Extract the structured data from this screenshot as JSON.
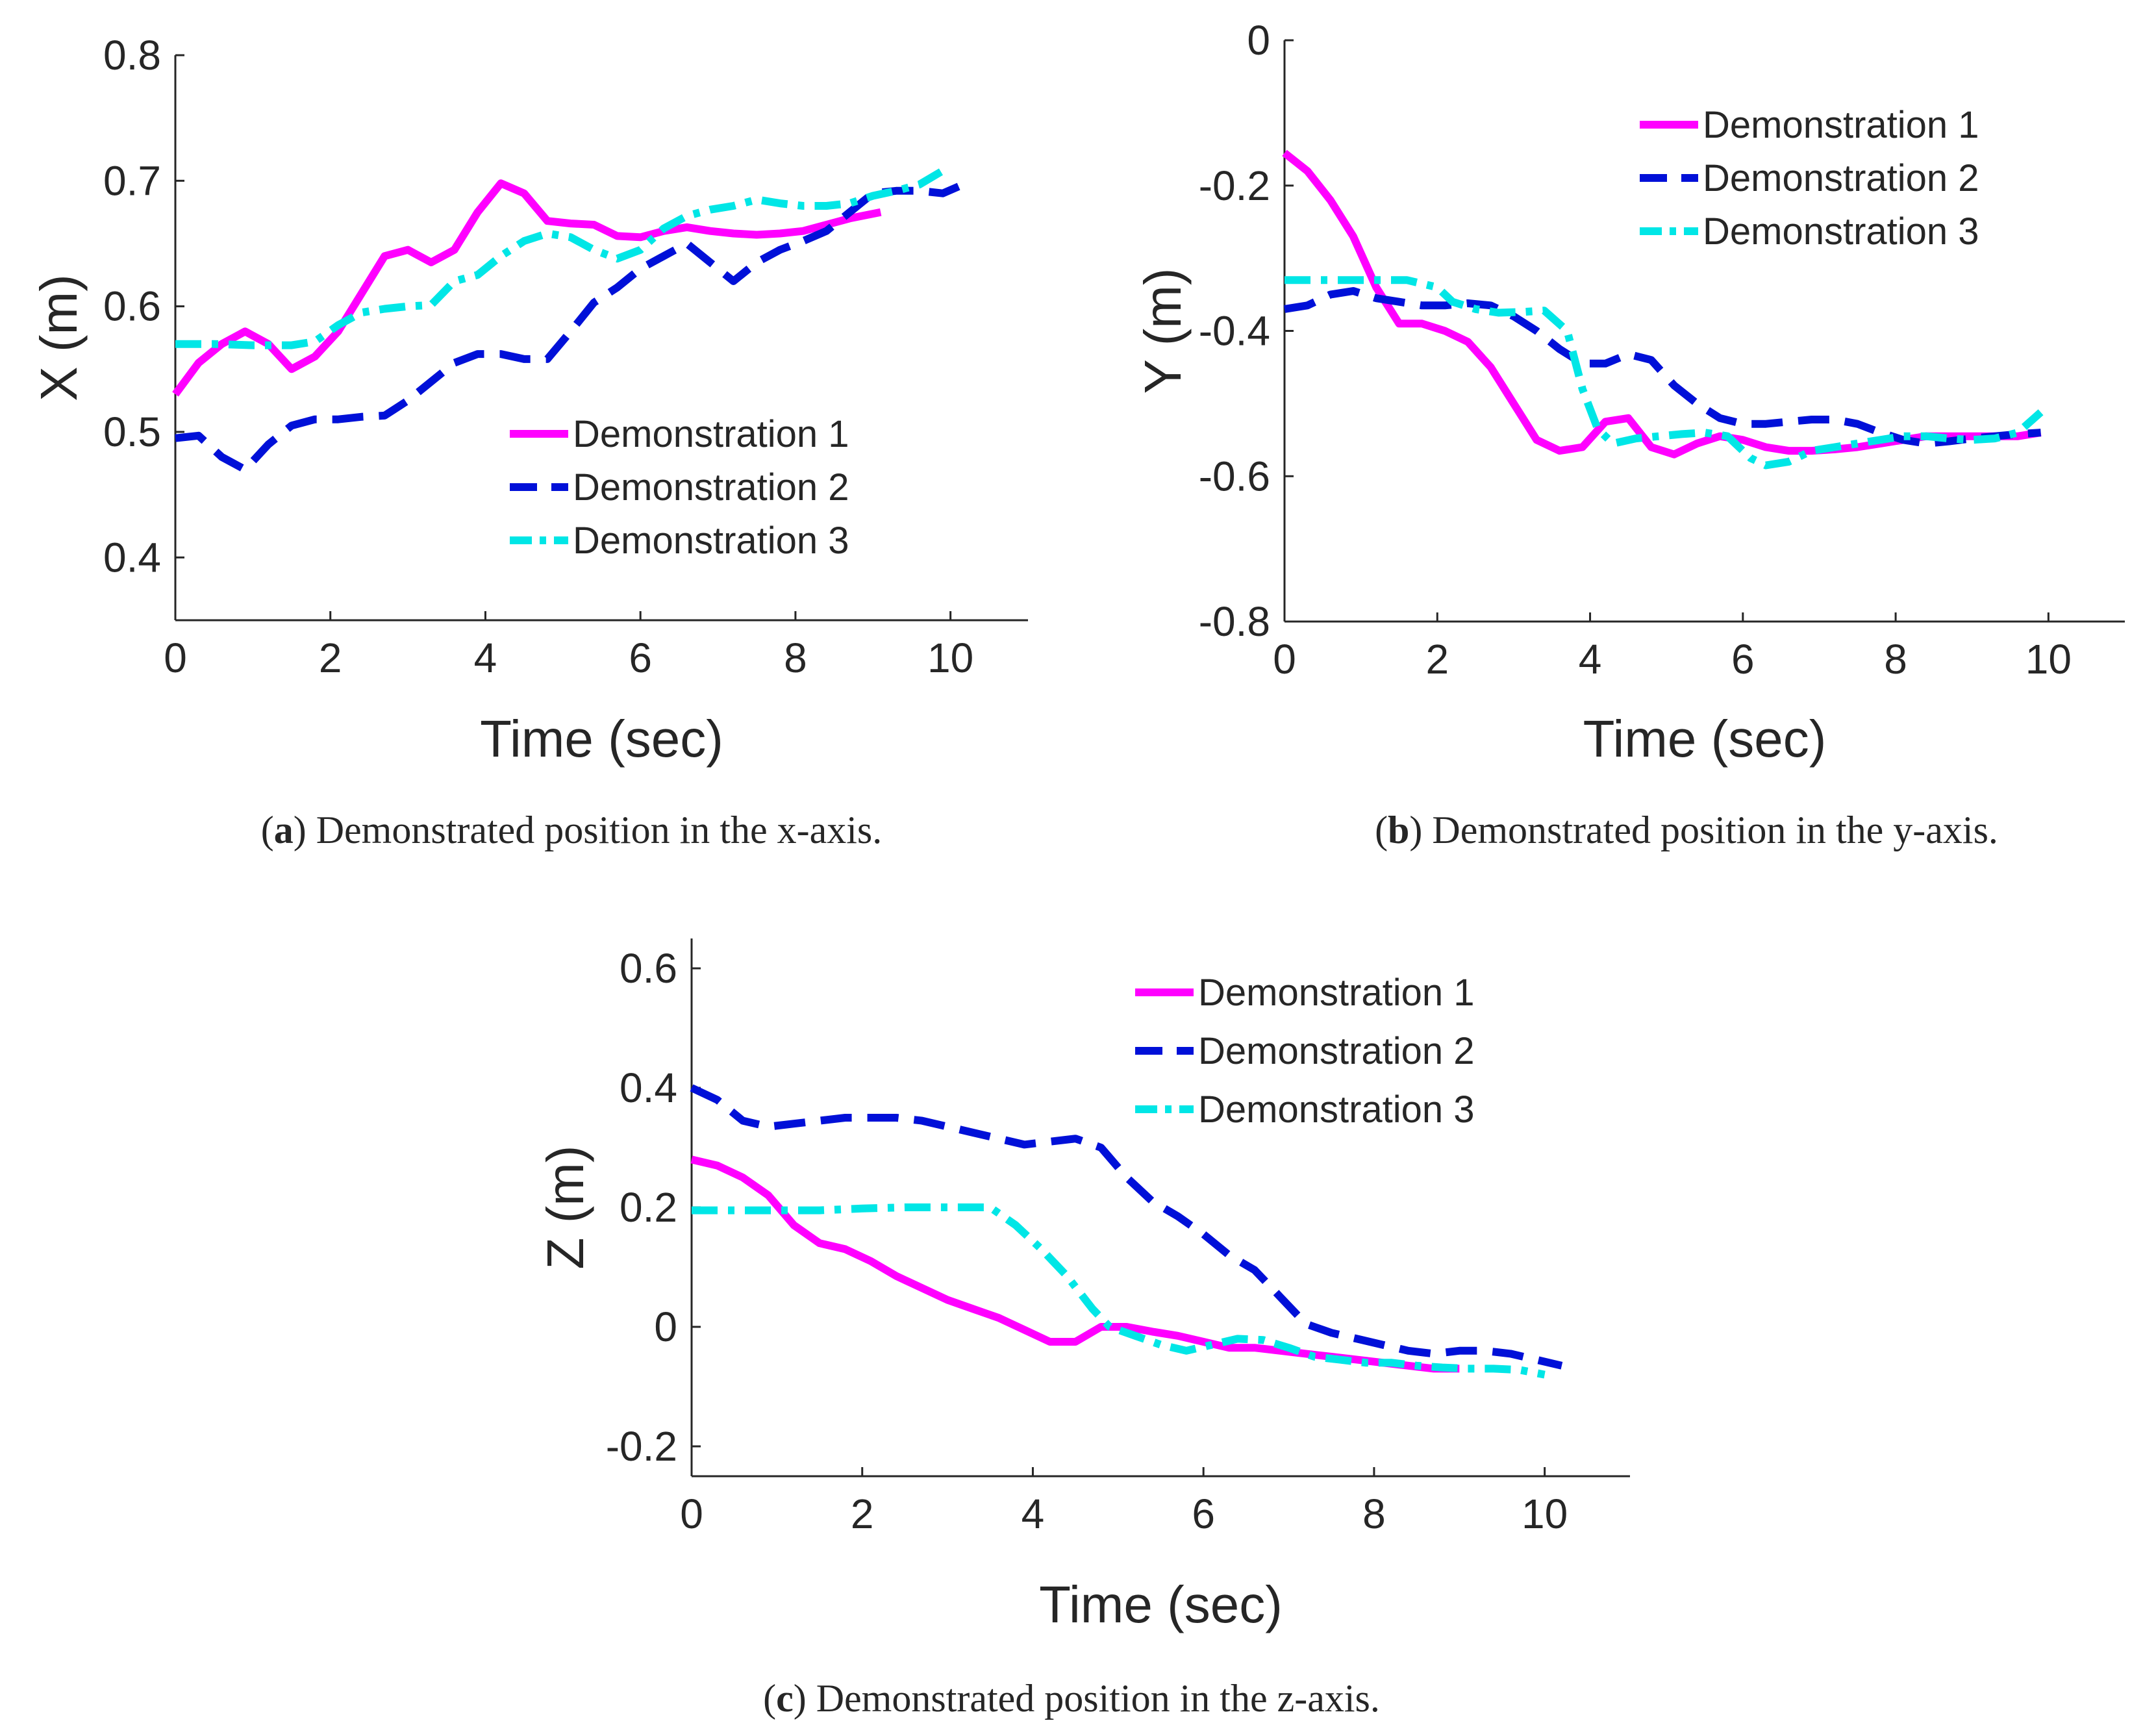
{
  "chart_data": [
    {
      "type": "line",
      "panel": "a",
      "caption_letter": "a",
      "caption_text": "Demonstrated position in the x-axis.",
      "xlabel": "Time (sec)",
      "ylabel": "X (m)",
      "xlim": [
        0,
        11
      ],
      "ylim": [
        0.35,
        0.8
      ],
      "xticks": [
        0,
        2,
        4,
        6,
        8,
        10
      ],
      "yticks": [
        0.4,
        0.5,
        0.6,
        0.7,
        0.8
      ],
      "xtick_labels": [
        "0",
        "2",
        "4",
        "6",
        "8",
        "10"
      ],
      "ytick_labels": [
        "0.4",
        "0.5",
        "0.6",
        "0.7",
        "0.8"
      ],
      "legend_position": "lower-right",
      "series": [
        {
          "name": "Demonstration 1",
          "color": "#ff00ff",
          "style": "solid",
          "x": [
            0,
            0.3,
            0.6,
            0.9,
            1.2,
            1.5,
            1.8,
            2.1,
            2.4,
            2.7,
            3.0,
            3.3,
            3.6,
            3.9,
            4.2,
            4.5,
            4.8,
            5.1,
            5.4,
            5.7,
            6.0,
            6.3,
            6.6,
            6.9,
            7.2,
            7.5,
            7.8,
            8.1,
            8.4,
            8.7,
            9.1
          ],
          "y": [
            0.53,
            0.555,
            0.57,
            0.58,
            0.57,
            0.55,
            0.56,
            0.58,
            0.61,
            0.64,
            0.645,
            0.635,
            0.645,
            0.675,
            0.698,
            0.69,
            0.668,
            0.666,
            0.665,
            0.656,
            0.655,
            0.66,
            0.663,
            0.66,
            0.658,
            0.657,
            0.658,
            0.66,
            0.665,
            0.67,
            0.675
          ]
        },
        {
          "name": "Demonstration 2",
          "color": "#0010d8",
          "style": "dashed",
          "x": [
            0,
            0.3,
            0.6,
            0.9,
            1.2,
            1.5,
            1.8,
            2.1,
            2.4,
            2.7,
            3.0,
            3.3,
            3.6,
            3.9,
            4.2,
            4.5,
            4.8,
            5.1,
            5.4,
            5.7,
            6.0,
            6.3,
            6.6,
            6.9,
            7.2,
            7.5,
            7.8,
            8.1,
            8.4,
            8.7,
            9.0,
            9.3,
            9.6,
            9.9,
            10.2
          ],
          "y": [
            0.495,
            0.497,
            0.48,
            0.47,
            0.49,
            0.505,
            0.51,
            0.51,
            0.512,
            0.513,
            0.525,
            0.54,
            0.555,
            0.562,
            0.562,
            0.558,
            0.558,
            0.58,
            0.603,
            0.615,
            0.63,
            0.64,
            0.65,
            0.635,
            0.62,
            0.635,
            0.645,
            0.652,
            0.66,
            0.675,
            0.69,
            0.692,
            0.692,
            0.69,
            0.698
          ]
        },
        {
          "name": "Demonstration 3",
          "color": "#00e6e6",
          "style": "dashdot",
          "x": [
            0,
            0.5,
            1.0,
            1.5,
            1.8,
            2.1,
            2.4,
            2.7,
            3.0,
            3.3,
            3.6,
            3.9,
            4.2,
            4.5,
            4.8,
            5.1,
            5.4,
            5.7,
            6.0,
            6.3,
            6.6,
            6.9,
            7.2,
            7.5,
            7.8,
            8.1,
            8.4,
            8.7,
            9.0,
            9.3,
            9.6,
            9.9
          ],
          "y": [
            0.57,
            0.57,
            0.569,
            0.569,
            0.572,
            0.585,
            0.595,
            0.598,
            0.6,
            0.601,
            0.62,
            0.625,
            0.64,
            0.652,
            0.658,
            0.655,
            0.645,
            0.638,
            0.645,
            0.662,
            0.672,
            0.677,
            0.68,
            0.685,
            0.682,
            0.68,
            0.68,
            0.682,
            0.688,
            0.692,
            0.697,
            0.708
          ]
        }
      ]
    },
    {
      "type": "line",
      "panel": "b",
      "caption_letter": "b",
      "caption_text": "Demonstrated position in the y-axis.",
      "xlabel": "Time (sec)",
      "ylabel": "Y (m)",
      "xlim": [
        0,
        11
      ],
      "ylim": [
        -0.8,
        0
      ],
      "xticks": [
        0,
        2,
        4,
        6,
        8,
        10
      ],
      "yticks": [
        0,
        -0.2,
        -0.4,
        -0.6,
        -0.8
      ],
      "xtick_labels": [
        "0",
        "2",
        "4",
        "6",
        "8",
        "10"
      ],
      "ytick_labels": [
        "0",
        "-0.2",
        "-0.4",
        "-0.6",
        "-0.8"
      ],
      "legend_position": "top-right",
      "series": [
        {
          "name": "Demonstration 1",
          "color": "#ff00ff",
          "style": "solid",
          "x": [
            0,
            0.3,
            0.6,
            0.9,
            1.2,
            1.5,
            1.8,
            2.1,
            2.4,
            2.7,
            3.0,
            3.3,
            3.6,
            3.9,
            4.2,
            4.5,
            4.8,
            5.1,
            5.4,
            5.7,
            6.0,
            6.3,
            6.6,
            6.9,
            7.2,
            7.5,
            7.8,
            8.1,
            8.4,
            8.7,
            9.0,
            9.3,
            9.6,
            9.9
          ],
          "y": [
            -0.155,
            -0.18,
            -0.22,
            -0.27,
            -0.34,
            -0.39,
            -0.39,
            -0.4,
            -0.415,
            -0.45,
            -0.5,
            -0.55,
            -0.565,
            -0.56,
            -0.525,
            -0.52,
            -0.56,
            -0.57,
            -0.555,
            -0.545,
            -0.55,
            -0.56,
            -0.565,
            -0.565,
            -0.563,
            -0.56,
            -0.555,
            -0.55,
            -0.545,
            -0.545,
            -0.545,
            -0.545,
            -0.545,
            -0.54
          ]
        },
        {
          "name": "Demonstration 2",
          "color": "#0010d8",
          "style": "dashed",
          "x": [
            0,
            0.3,
            0.6,
            0.9,
            1.2,
            1.5,
            1.8,
            2.1,
            2.4,
            2.7,
            3.0,
            3.3,
            3.6,
            3.9,
            4.2,
            4.5,
            4.8,
            5.1,
            5.4,
            5.7,
            6.0,
            6.3,
            6.6,
            6.9,
            7.2,
            7.5,
            7.8,
            8.1,
            8.4,
            8.7,
            9.0,
            9.3,
            9.6,
            9.9
          ],
          "y": [
            -0.37,
            -0.365,
            -0.35,
            -0.345,
            -0.355,
            -0.36,
            -0.365,
            -0.365,
            -0.362,
            -0.365,
            -0.38,
            -0.4,
            -0.425,
            -0.445,
            -0.445,
            -0.432,
            -0.44,
            -0.475,
            -0.5,
            -0.52,
            -0.528,
            -0.528,
            -0.525,
            -0.522,
            -0.522,
            -0.528,
            -0.54,
            -0.55,
            -0.555,
            -0.552,
            -0.548,
            -0.545,
            -0.542,
            -0.54
          ]
        },
        {
          "name": "Demonstration 3",
          "color": "#00e6e6",
          "style": "dashdot",
          "x": [
            0,
            0.4,
            0.8,
            1.2,
            1.6,
            2.0,
            2.2,
            2.5,
            2.8,
            3.1,
            3.4,
            3.7,
            3.9,
            4.1,
            4.3,
            4.6,
            4.9,
            5.2,
            5.5,
            5.8,
            6.1,
            6.3,
            6.6,
            6.9,
            7.2,
            7.5,
            7.8,
            8.1,
            8.4,
            8.7,
            9.0,
            9.3,
            9.6,
            9.9
          ],
          "y": [
            -0.33,
            -0.33,
            -0.33,
            -0.33,
            -0.33,
            -0.34,
            -0.36,
            -0.37,
            -0.375,
            -0.374,
            -0.372,
            -0.4,
            -0.48,
            -0.535,
            -0.555,
            -0.548,
            -0.545,
            -0.542,
            -0.54,
            -0.545,
            -0.575,
            -0.585,
            -0.58,
            -0.565,
            -0.56,
            -0.555,
            -0.55,
            -0.545,
            -0.545,
            -0.548,
            -0.55,
            -0.548,
            -0.54,
            -0.512
          ]
        }
      ]
    },
    {
      "type": "line",
      "panel": "c",
      "caption_letter": "c",
      "caption_text": "Demonstrated position in the z-axis.",
      "xlabel": "Time (sec)",
      "ylabel": "Z (m)",
      "xlim": [
        0,
        11
      ],
      "ylim": [
        -0.25,
        0.65
      ],
      "xticks": [
        0,
        2,
        4,
        6,
        8,
        10
      ],
      "yticks": [
        0.6,
        0.4,
        0.2,
        0,
        -0.2
      ],
      "xtick_labels": [
        "0",
        "2",
        "4",
        "6",
        "8",
        "10"
      ],
      "ytick_labels": [
        "0.6",
        "0.4",
        "0.2",
        "0",
        "-0.2"
      ],
      "legend_position": "top-right",
      "series": [
        {
          "name": "Demonstration 1",
          "color": "#ff00ff",
          "style": "solid",
          "x": [
            0,
            0.3,
            0.6,
            0.9,
            1.2,
            1.5,
            1.8,
            2.1,
            2.4,
            2.7,
            3.0,
            3.3,
            3.6,
            3.9,
            4.2,
            4.5,
            4.8,
            5.1,
            5.4,
            5.7,
            6.0,
            6.3,
            6.6,
            6.9,
            7.2,
            7.5,
            7.8,
            8.1,
            8.4,
            8.7,
            9.0
          ],
          "y": [
            0.28,
            0.27,
            0.25,
            0.22,
            0.17,
            0.14,
            0.13,
            0.11,
            0.085,
            0.065,
            0.045,
            0.03,
            0.015,
            -0.005,
            -0.025,
            -0.025,
            0.0,
            0.0,
            -0.008,
            -0.015,
            -0.025,
            -0.035,
            -0.035,
            -0.04,
            -0.045,
            -0.05,
            -0.055,
            -0.06,
            -0.065,
            -0.07,
            -0.07
          ]
        },
        {
          "name": "Demonstration 2",
          "color": "#0010d8",
          "style": "dashed",
          "x": [
            0,
            0.3,
            0.6,
            0.9,
            1.2,
            1.5,
            1.8,
            2.1,
            2.4,
            2.7,
            3.0,
            3.3,
            3.6,
            3.9,
            4.2,
            4.5,
            4.8,
            5.1,
            5.4,
            5.7,
            6.0,
            6.3,
            6.6,
            6.9,
            7.2,
            7.5,
            7.8,
            8.1,
            8.4,
            8.7,
            9.0,
            9.3,
            9.6,
            9.9,
            10.2
          ],
          "y": [
            0.4,
            0.38,
            0.345,
            0.335,
            0.34,
            0.345,
            0.35,
            0.35,
            0.35,
            0.345,
            0.335,
            0.325,
            0.315,
            0.305,
            0.31,
            0.315,
            0.3,
            0.25,
            0.21,
            0.185,
            0.155,
            0.12,
            0.095,
            0.05,
            0.005,
            -0.01,
            -0.02,
            -0.03,
            -0.04,
            -0.045,
            -0.04,
            -0.04,
            -0.045,
            -0.055,
            -0.065
          ]
        },
        {
          "name": "Demonstration 3",
          "color": "#00e6e6",
          "style": "dashdot",
          "x": [
            0,
            0.5,
            1.0,
            1.5,
            2.0,
            2.5,
            3.0,
            3.5,
            3.8,
            4.1,
            4.4,
            4.7,
            4.9,
            5.2,
            5.5,
            5.8,
            6.1,
            6.4,
            6.7,
            7.0,
            7.3,
            7.6,
            7.9,
            8.2,
            8.5,
            8.8,
            9.1,
            9.4,
            9.7,
            10.0
          ],
          "y": [
            0.195,
            0.195,
            0.195,
            0.195,
            0.198,
            0.2,
            0.2,
            0.2,
            0.17,
            0.13,
            0.085,
            0.03,
            0.0,
            -0.015,
            -0.03,
            -0.04,
            -0.03,
            -0.02,
            -0.022,
            -0.035,
            -0.05,
            -0.055,
            -0.06,
            -0.06,
            -0.065,
            -0.068,
            -0.07,
            -0.07,
            -0.072,
            -0.08
          ]
        }
      ]
    }
  ]
}
